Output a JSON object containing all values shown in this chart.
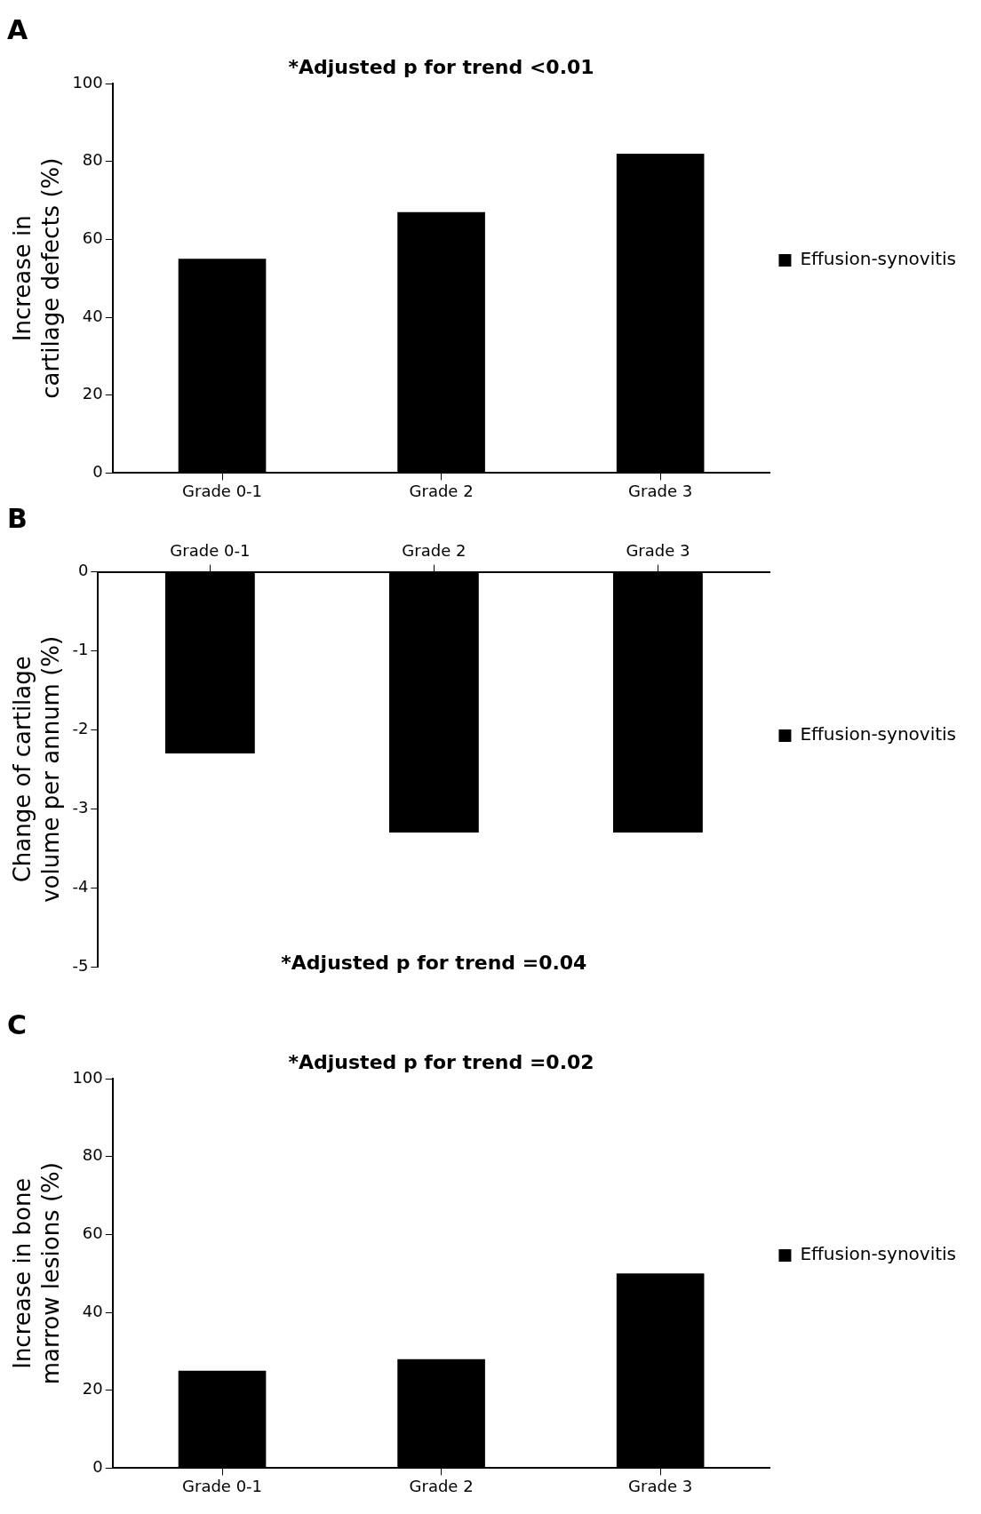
{
  "chart_data": [
    {
      "type": "bar",
      "title": "A",
      "categories": [
        "Grade 0-1",
        "Grade 2",
        "Grade 3"
      ],
      "series": [
        {
          "name": "Effusion-synovitis",
          "color": "#000000",
          "values": [
            55,
            67,
            82
          ]
        }
      ],
      "ylabel": "Increase in cartilage defects (%)",
      "ylim": [
        0,
        100
      ],
      "yticks": [
        0,
        20,
        40,
        60,
        80,
        100
      ],
      "grid": false,
      "legend": "right",
      "annotations": [
        "*Adjusted p for trend <0.01"
      ]
    },
    {
      "type": "bar",
      "title": "B",
      "categories": [
        "Grade 0-1",
        "Grade 2",
        "Grade 3"
      ],
      "series": [
        {
          "name": "Effusion-synovitis",
          "color": "#000000",
          "values": [
            -2.3,
            -3.3,
            -3.3
          ]
        }
      ],
      "ylabel": "Change of cartilage volume per annum (%)",
      "ylim": [
        -5,
        0
      ],
      "yticks": [
        -5,
        -4,
        -3,
        -2,
        -1,
        0
      ],
      "grid": false,
      "legend": "right",
      "annotations": [
        "*Adjusted p for trend =0.04"
      ]
    },
    {
      "type": "bar",
      "title": "C",
      "categories": [
        "Grade 0-1",
        "Grade 2",
        "Grade 3"
      ],
      "series": [
        {
          "name": "Effusion-synovitis",
          "color": "#000000",
          "values": [
            25,
            28,
            50
          ]
        }
      ],
      "ylabel": "Increase in bone marrow lesions (%)",
      "ylim": [
        0,
        100
      ],
      "yticks": [
        0,
        20,
        40,
        60,
        80,
        100
      ],
      "grid": false,
      "legend": "right",
      "annotations": [
        "*Adjusted p for trend =0.02"
      ]
    }
  ]
}
